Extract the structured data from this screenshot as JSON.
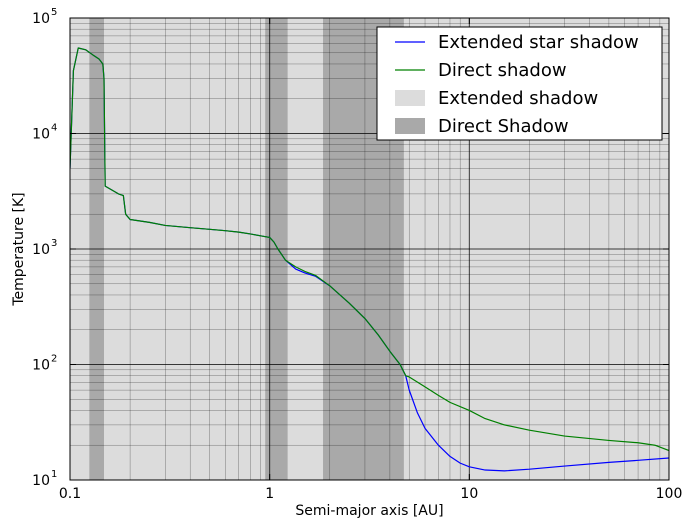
{
  "chart_data": {
    "type": "line",
    "title": "",
    "xlabel": "Semi-major axis [AU]",
    "ylabel": "Temperature [K]",
    "xscale": "log",
    "yscale": "log",
    "xlim": [
      0.1,
      100
    ],
    "ylim": [
      10,
      100000
    ],
    "grid": true,
    "legend_position": "top-right",
    "x_ticks": [
      {
        "value": 0.1,
        "label": "0.1"
      },
      {
        "value": 1,
        "label": "1"
      },
      {
        "value": 10,
        "label": "10"
      },
      {
        "value": 100,
        "label": "100"
      }
    ],
    "y_ticks": [
      {
        "value": 10,
        "base": "10",
        "exp": "1"
      },
      {
        "value": 100,
        "base": "10",
        "exp": "2"
      },
      {
        "value": 1000,
        "base": "10",
        "exp": "3"
      },
      {
        "value": 10000,
        "base": "10",
        "exp": "4"
      },
      {
        "value": 100000,
        "base": "10",
        "exp": "5"
      }
    ],
    "shaded_regions": [
      {
        "name": "Extended shadow",
        "color": "#dcdcdc",
        "x": [
          0.1,
          100
        ]
      },
      {
        "name": "Direct Shadow",
        "color": "#a9a9a9",
        "x": [
          0.125,
          0.148
        ]
      },
      {
        "name": "Direct Shadow",
        "color": "#a9a9a9",
        "x": [
          0.95,
          1.23
        ]
      },
      {
        "name": "Direct Shadow",
        "color": "#a9a9a9",
        "x": [
          1.85,
          4.7
        ]
      }
    ],
    "series": [
      {
        "name": "Extended star shadow",
        "color": "#0000ff",
        "x": [
          0.1,
          0.104,
          0.11,
          0.12,
          0.13,
          0.14,
          0.146,
          0.148,
          0.15,
          0.175,
          0.185,
          0.19,
          0.2,
          0.25,
          0.3,
          0.4,
          0.5,
          0.6,
          0.7,
          0.8,
          0.9,
          1.0,
          1.05,
          1.1,
          1.2,
          1.35,
          1.5,
          1.7,
          2.0,
          2.5,
          3.0,
          3.5,
          4.0,
          4.5,
          4.8,
          5.0,
          5.5,
          6,
          7,
          8,
          9,
          10,
          12,
          15,
          20,
          30,
          50,
          70,
          100
        ],
        "y": [
          5000,
          35000,
          55000,
          53000,
          48000,
          44000,
          40000,
          30000,
          3500,
          3000,
          2900,
          2000,
          1800,
          1700,
          1600,
          1530,
          1480,
          1440,
          1400,
          1350,
          1300,
          1260,
          1150,
          1000,
          800,
          670,
          620,
          580,
          480,
          340,
          250,
          180,
          130,
          100,
          80,
          60,
          38,
          28,
          20,
          16,
          14,
          13,
          12.2,
          12,
          12.4,
          13.2,
          14.2,
          14.8,
          15.5
        ]
      },
      {
        "name": "Direct shadow",
        "color": "#008000",
        "x": [
          0.1,
          0.104,
          0.11,
          0.12,
          0.13,
          0.14,
          0.146,
          0.148,
          0.15,
          0.175,
          0.185,
          0.19,
          0.2,
          0.25,
          0.3,
          0.4,
          0.5,
          0.6,
          0.7,
          0.8,
          0.9,
          1.0,
          1.05,
          1.1,
          1.2,
          1.35,
          1.5,
          1.7,
          2.0,
          2.5,
          3.0,
          3.5,
          4.0,
          4.5,
          4.8,
          5.0,
          6,
          7,
          8,
          10,
          12,
          15,
          20,
          30,
          50,
          70,
          85,
          100
        ],
        "y": [
          5000,
          35000,
          55000,
          53000,
          48000,
          44000,
          40000,
          30000,
          3500,
          3000,
          2900,
          2000,
          1800,
          1700,
          1600,
          1530,
          1480,
          1440,
          1400,
          1350,
          1300,
          1260,
          1150,
          1000,
          800,
          700,
          640,
          590,
          480,
          340,
          250,
          180,
          130,
          100,
          80,
          78,
          64,
          54,
          47,
          40,
          34,
          30,
          27,
          24,
          22,
          21,
          20,
          18
        ]
      }
    ],
    "legend": [
      {
        "label": "Extended star shadow",
        "kind": "line",
        "color": "#0000ff"
      },
      {
        "label": "Direct shadow",
        "kind": "line",
        "color": "#008000"
      },
      {
        "label": "Extended shadow",
        "kind": "patch",
        "color": "#dcdcdc"
      },
      {
        "label": "Direct Shadow",
        "kind": "patch",
        "color": "#a9a9a9"
      }
    ]
  }
}
